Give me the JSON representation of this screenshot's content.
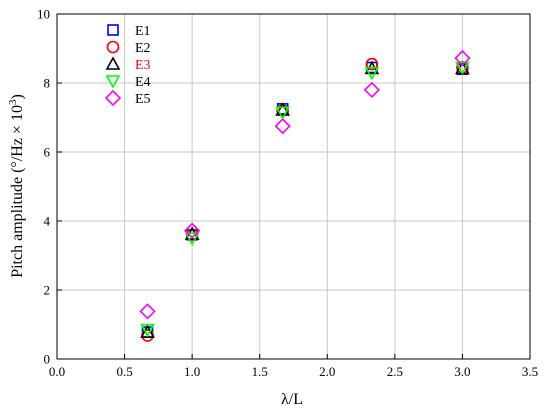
{
  "chart_data": {
    "type": "scatter",
    "title": "",
    "xlabel": "λ/L",
    "ylabel_prefix": "Pitch amplitude (°/Hz × 10",
    "ylabel_sup": "3",
    "ylabel_suffix": ")",
    "xlim": [
      0.0,
      3.5
    ],
    "ylim": [
      0,
      10
    ],
    "xticks": [
      0.0,
      0.5,
      1.0,
      1.5,
      2.0,
      2.5,
      3.0,
      3.5
    ],
    "xtick_labels": [
      "0.0",
      "0.5",
      "1.0",
      "1.5",
      "2.0",
      "2.5",
      "3.0",
      "3.5"
    ],
    "yticks": [
      0,
      2,
      4,
      6,
      8,
      10
    ],
    "ytick_labels": [
      "0",
      "2",
      "4",
      "6",
      "8",
      "10"
    ],
    "grid": true,
    "legend_position": "top-left",
    "series": [
      {
        "name": "E1",
        "marker": "square",
        "color": "#0000ff",
        "label_color": "#000000",
        "points": [
          [
            0.67,
            0.78
          ],
          [
            1.0,
            3.6
          ],
          [
            1.67,
            7.25
          ],
          [
            2.33,
            8.45
          ],
          [
            3.0,
            8.4
          ]
        ]
      },
      {
        "name": "E2",
        "marker": "circle",
        "color": "#ff0000",
        "label_color": "#000000",
        "points": [
          [
            0.67,
            0.68
          ],
          [
            1.0,
            3.6
          ],
          [
            1.67,
            7.2
          ],
          [
            2.33,
            8.55
          ],
          [
            3.0,
            8.45
          ]
        ]
      },
      {
        "name": "E3",
        "marker": "triangle-up",
        "color": "#000000",
        "label_color": "#ff0000",
        "points": [
          [
            0.67,
            0.78
          ],
          [
            1.0,
            3.62
          ],
          [
            1.67,
            7.22
          ],
          [
            2.33,
            8.42
          ],
          [
            3.0,
            8.42
          ]
        ]
      },
      {
        "name": "E4",
        "marker": "triangle-down",
        "color": "#00ff00",
        "label_color": "#000000",
        "points": [
          [
            0.67,
            0.85
          ],
          [
            1.0,
            3.5
          ],
          [
            1.67,
            7.15
          ],
          [
            2.33,
            8.3
          ],
          [
            3.0,
            8.45
          ]
        ]
      },
      {
        "name": "E5",
        "marker": "diamond",
        "color": "#ff00ff",
        "label_color": "#000000",
        "points": [
          [
            0.67,
            1.38
          ],
          [
            1.0,
            3.72
          ],
          [
            1.67,
            6.75
          ],
          [
            2.33,
            7.8
          ],
          [
            3.0,
            8.72
          ]
        ]
      }
    ]
  }
}
